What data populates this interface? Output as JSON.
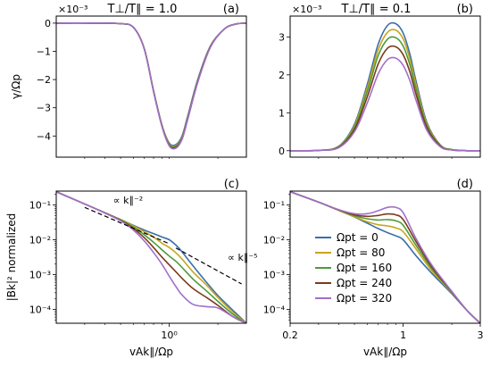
{
  "chart_data": [
    {
      "id": "a",
      "type": "line",
      "title": "T⊥/T∥ = 1.0",
      "panel_tag": "(a)",
      "ylabel": "γ/Ωp",
      "offset_text": "×10⁻³",
      "xscale": "log",
      "xlim": [
        0.2,
        3.0
      ],
      "ylim": [
        -4.75,
        0.25
      ],
      "yticks": [
        0,
        -1,
        -2,
        -3,
        -4
      ],
      "ytick_labels": [
        "0",
        "−1",
        "−2",
        "−3",
        "−4"
      ],
      "series_x": [
        0.2,
        0.35,
        0.5,
        0.6,
        0.7,
        0.8,
        0.9,
        1.0,
        1.1,
        1.2,
        1.3,
        1.5,
        1.8,
        2.2,
        2.6,
        3.0
      ],
      "series": [
        {
          "name": "Ωpt = 0",
          "color": "#3a6fa8",
          "values": [
            0,
            0,
            -0.02,
            -0.15,
            -0.9,
            -2.4,
            -3.6,
            -4.25,
            -4.3,
            -4.0,
            -3.3,
            -2.0,
            -0.8,
            -0.2,
            -0.03,
            0
          ]
        },
        {
          "name": "Ωpt = 80",
          "color": "#c8a51e",
          "values": [
            0,
            0,
            -0.02,
            -0.15,
            -0.9,
            -2.4,
            -3.6,
            -4.28,
            -4.34,
            -4.05,
            -3.35,
            -2.05,
            -0.82,
            -0.2,
            -0.03,
            0
          ]
        },
        {
          "name": "Ωpt = 160",
          "color": "#4f9a3a",
          "values": [
            0,
            0,
            -0.02,
            -0.15,
            -0.9,
            -2.4,
            -3.62,
            -4.3,
            -4.36,
            -4.08,
            -3.38,
            -2.07,
            -0.83,
            -0.2,
            -0.03,
            0
          ]
        },
        {
          "name": "Ωpt = 240",
          "color": "#7b3a1a",
          "values": [
            0,
            0,
            -0.02,
            -0.15,
            -0.9,
            -2.42,
            -3.64,
            -4.33,
            -4.4,
            -4.1,
            -3.4,
            -2.08,
            -0.84,
            -0.2,
            -0.03,
            0
          ]
        },
        {
          "name": "Ωpt = 320",
          "color": "#a070c8",
          "values": [
            0,
            0,
            -0.02,
            -0.15,
            -0.9,
            -2.43,
            -3.65,
            -4.35,
            -4.43,
            -4.12,
            -3.42,
            -2.1,
            -0.85,
            -0.2,
            -0.03,
            0
          ]
        }
      ]
    },
    {
      "id": "b",
      "type": "line",
      "title": "T⊥/T∥ = 0.1",
      "panel_tag": "(b)",
      "offset_text": "×10⁻³",
      "xscale": "log",
      "xlim": [
        0.2,
        3.0
      ],
      "ylim": [
        -0.17,
        3.55
      ],
      "yticks": [
        0,
        1,
        2,
        3
      ],
      "ytick_labels": [
        "0",
        "1",
        "2",
        "3"
      ],
      "series_x": [
        0.2,
        0.3,
        0.4,
        0.5,
        0.6,
        0.7,
        0.8,
        0.9,
        1.0,
        1.1,
        1.2,
        1.4,
        1.7,
        2.0,
        2.5,
        3.0
      ],
      "series": [
        {
          "name": "Ωpt = 0",
          "color": "#3a6fa8",
          "values": [
            0,
            0.01,
            0.12,
            0.7,
            1.75,
            2.8,
            3.3,
            3.35,
            3.1,
            2.55,
            1.85,
            0.75,
            0.15,
            0.03,
            0,
            0
          ]
        },
        {
          "name": "Ωpt = 80",
          "color": "#c8a51e",
          "values": [
            0,
            0.01,
            0.11,
            0.66,
            1.66,
            2.65,
            3.12,
            3.18,
            2.95,
            2.42,
            1.75,
            0.71,
            0.14,
            0.03,
            0,
            0
          ]
        },
        {
          "name": "Ωpt = 160",
          "color": "#4f9a3a",
          "values": [
            0,
            0.01,
            0.1,
            0.62,
            1.56,
            2.5,
            2.94,
            2.98,
            2.76,
            2.27,
            1.64,
            0.67,
            0.13,
            0.03,
            0,
            0
          ]
        },
        {
          "name": "Ωpt = 240",
          "color": "#7b3a1a",
          "values": [
            0,
            0.01,
            0.09,
            0.56,
            1.42,
            2.28,
            2.7,
            2.74,
            2.53,
            2.08,
            1.5,
            0.61,
            0.12,
            0.02,
            0,
            0
          ]
        },
        {
          "name": "Ωpt = 320",
          "color": "#a070c8",
          "values": [
            0,
            0.01,
            0.08,
            0.5,
            1.26,
            2.02,
            2.4,
            2.44,
            2.25,
            1.85,
            1.34,
            0.54,
            0.1,
            0.02,
            0,
            0
          ]
        }
      ]
    },
    {
      "id": "c",
      "type": "line",
      "panel_tag": "(c)",
      "ylabel": "|Bk|² normalized",
      "xlabel": "vAk∥/Ωp",
      "xscale": "log",
      "yscale": "log",
      "xlim": [
        0.2,
        3.0
      ],
      "ylim": [
        4e-05,
        0.25
      ],
      "xticks": [
        1
      ],
      "xtick_labels": [
        "10⁰"
      ],
      "yticks": [
        0.1,
        0.01,
        0.001,
        0.0001
      ],
      "ytick_labels": [
        "10⁻¹",
        "10⁻²",
        "10⁻³",
        "10⁻⁴"
      ],
      "annotations": [
        {
          "text": "∝ k∥⁻²",
          "x": 0.45,
          "y": 0.11
        },
        {
          "text": "∝ k∥⁻⁵",
          "x": 2.3,
          "y": 0.0025
        }
      ],
      "guide_lines": [
        {
          "x": [
            0.3,
            1.0
          ],
          "y": [
            0.085,
            0.0077
          ]
        },
        {
          "x": [
            1.1,
            2.8
          ],
          "y": [
            0.0058,
            0.00054
          ]
        }
      ],
      "series_x": [
        0.2,
        0.35,
        0.5,
        0.6,
        0.7,
        0.8,
        0.9,
        1.0,
        1.1,
        1.2,
        1.4,
        1.7,
        2.0,
        2.5,
        3.0
      ],
      "series": [
        {
          "name": "Ωpt = 0",
          "color": "#3a6fa8",
          "values": [
            0.24,
            0.078,
            0.038,
            0.026,
            0.019,
            0.015,
            0.012,
            0.01,
            0.007,
            0.0045,
            0.0018,
            0.0006,
            0.00025,
            9e-05,
            4e-05
          ]
        },
        {
          "name": "Ωpt = 80",
          "color": "#c8a51e",
          "values": [
            0.24,
            0.078,
            0.038,
            0.025,
            0.017,
            0.012,
            0.008,
            0.006,
            0.0042,
            0.0028,
            0.0012,
            0.0005,
            0.00022,
            8e-05,
            4e-05
          ]
        },
        {
          "name": "Ωpt = 160",
          "color": "#4f9a3a",
          "values": [
            0.24,
            0.078,
            0.037,
            0.023,
            0.014,
            0.0085,
            0.0052,
            0.0034,
            0.0024,
            0.0016,
            0.00075,
            0.00034,
            0.00017,
            7e-05,
            4e-05
          ]
        },
        {
          "name": "Ωpt = 240",
          "color": "#7b3a1a",
          "values": [
            0.24,
            0.078,
            0.036,
            0.021,
            0.0115,
            0.006,
            0.0032,
            0.0019,
            0.0012,
            0.00078,
            0.0004,
            0.00022,
            0.00013,
            6e-05,
            4e-05
          ]
        },
        {
          "name": "Ωpt = 320",
          "color": "#a070c8",
          "values": [
            0.24,
            0.078,
            0.035,
            0.019,
            0.0093,
            0.0043,
            0.002,
            0.0009,
            0.00045,
            0.00026,
            0.00014,
            0.00012,
            0.00011,
            6e-05,
            4e-05
          ]
        }
      ]
    },
    {
      "id": "d",
      "type": "line",
      "panel_tag": "(d)",
      "xlabel": "vAk∥/Ωp",
      "xscale": "log",
      "yscale": "log",
      "xlim": [
        0.2,
        3.0
      ],
      "ylim": [
        4e-05,
        0.25
      ],
      "xticks": [
        0.2,
        1,
        3
      ],
      "xtick_labels": [
        "0.2",
        "1",
        "3"
      ],
      "yticks": [
        0.1,
        0.01,
        0.001,
        0.0001
      ],
      "ytick_labels": [
        "10⁻¹",
        "10⁻²",
        "10⁻³",
        "10⁻⁴"
      ],
      "legend": {
        "placement": "lower-left",
        "entries": [
          "Ωpt = 0",
          "Ωpt = 80",
          "Ωpt = 160",
          "Ωpt = 240",
          "Ωpt = 320"
        ]
      },
      "series_x": [
        0.2,
        0.3,
        0.4,
        0.5,
        0.6,
        0.7,
        0.8,
        0.9,
        1.0,
        1.2,
        1.5,
        2.0,
        2.5,
        3.0
      ],
      "series": [
        {
          "name": "Ωpt = 0",
          "color": "#3a6fa8",
          "values": [
            0.24,
            0.12,
            0.07,
            0.045,
            0.03,
            0.021,
            0.016,
            0.013,
            0.01,
            0.0035,
            0.0011,
            0.00028,
            9e-05,
            4e-05
          ]
        },
        {
          "name": "Ωpt = 80",
          "color": "#c8a51e",
          "values": [
            0.24,
            0.12,
            0.07,
            0.046,
            0.033,
            0.027,
            0.025,
            0.022,
            0.017,
            0.0055,
            0.0013,
            0.0003,
            9e-05,
            4e-05
          ]
        },
        {
          "name": "Ωpt = 160",
          "color": "#4f9a3a",
          "values": [
            0.24,
            0.12,
            0.071,
            0.049,
            0.04,
            0.037,
            0.038,
            0.035,
            0.026,
            0.007,
            0.0015,
            0.00031,
            9e-05,
            4e-05
          ]
        },
        {
          "name": "Ωpt = 240",
          "color": "#7b3a1a",
          "values": [
            0.24,
            0.12,
            0.072,
            0.052,
            0.047,
            0.05,
            0.055,
            0.052,
            0.038,
            0.009,
            0.0017,
            0.00032,
            9e-05,
            4e-05
          ]
        },
        {
          "name": "Ωpt = 320",
          "color": "#a070c8",
          "values": [
            0.24,
            0.12,
            0.073,
            0.056,
            0.056,
            0.068,
            0.085,
            0.085,
            0.06,
            0.011,
            0.0019,
            0.00033,
            9e-05,
            4e-05
          ]
        }
      ]
    }
  ]
}
